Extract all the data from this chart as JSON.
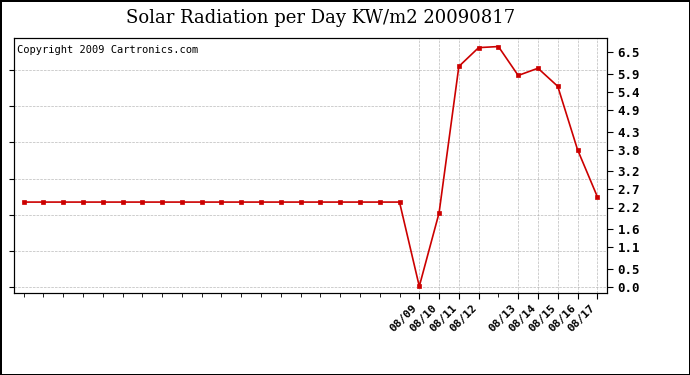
{
  "title": "Solar Radiation per Day KW/m2 20090817",
  "copyright": "Copyright 2009 Cartronics.com",
  "line_color": "#cc0000",
  "marker_color": "#cc0000",
  "bg_color": "#ffffff",
  "plot_bg_color": "#ffffff",
  "grid_color": "#aaaaaa",
  "y_values": [
    2.35,
    2.35,
    2.35,
    2.35,
    2.35,
    2.35,
    2.35,
    2.35,
    2.35,
    2.35,
    2.35,
    2.35,
    2.35,
    2.35,
    2.35,
    2.35,
    2.35,
    2.35,
    2.35,
    2.35,
    0.02,
    2.05,
    6.1,
    6.62,
    6.65,
    5.85,
    6.05,
    5.55,
    3.8,
    2.5
  ],
  "n_points": 30,
  "flat_end_idx": 19,
  "dip_idx": 20,
  "labeled_tick_positions": [
    20,
    21,
    22,
    23,
    25,
    26,
    27,
    28,
    29
  ],
  "labeled_tick_labels": [
    "08/09",
    "08/10",
    "08/11",
    "08/12",
    "08/13",
    "08/14",
    "08/15",
    "08/16",
    "08/17"
  ],
  "yticks": [
    0.0,
    0.5,
    1.1,
    1.6,
    2.2,
    2.7,
    3.2,
    3.8,
    4.3,
    4.9,
    5.4,
    5.9,
    6.5
  ],
  "ylim": [
    -0.15,
    6.9
  ],
  "xlim_left": -0.5,
  "xlim_right": 29.5,
  "title_fontsize": 13,
  "copyright_fontsize": 7.5,
  "ylabel_fontsize": 9
}
